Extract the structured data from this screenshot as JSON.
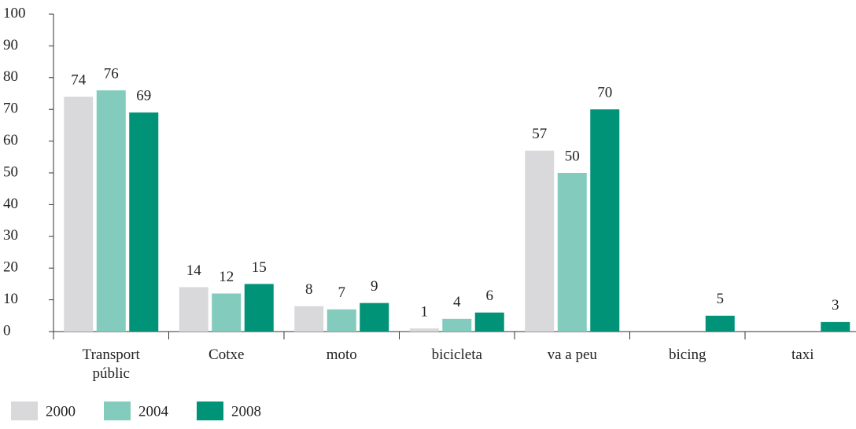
{
  "chart_data": {
    "type": "bar",
    "categories": [
      "Transport públic",
      "Cotxe",
      "moto",
      "bicicleta",
      "va a peu",
      "bicing",
      "taxi"
    ],
    "series": [
      {
        "name": "2000",
        "color": "#d9d9db",
        "values": [
          74,
          14,
          8,
          1,
          57,
          null,
          null
        ]
      },
      {
        "name": "2004",
        "color": "#82cbbd",
        "values": [
          76,
          12,
          7,
          4,
          50,
          null,
          null
        ]
      },
      {
        "name": "2008",
        "color": "#009378",
        "values": [
          69,
          15,
          9,
          6,
          70,
          5,
          3
        ]
      }
    ],
    "ylim": [
      0,
      100
    ],
    "yticks": [
      0,
      10,
      20,
      30,
      40,
      50,
      60,
      70,
      80,
      90,
      100
    ],
    "legend": "bottom-left"
  }
}
